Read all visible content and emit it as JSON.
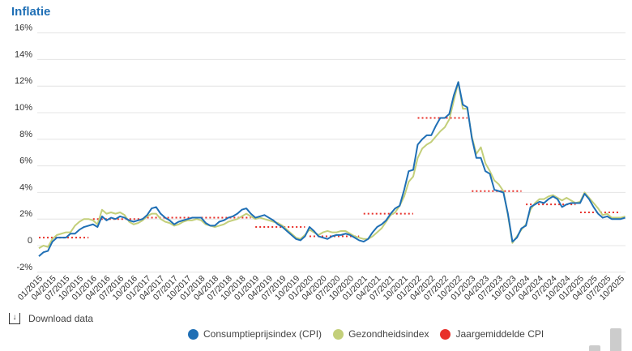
{
  "title": "Inflatie",
  "download_label": "Download data",
  "chart_data": {
    "type": "line",
    "title": "Inflatie",
    "ylim": [
      -2,
      16
    ],
    "yticks": [
      "-2%",
      "0",
      "2%",
      "4%",
      "6%",
      "8%",
      "10%",
      "12%",
      "14%",
      "16%"
    ],
    "ytick_values": [
      -2,
      0,
      2,
      4,
      6,
      8,
      10,
      12,
      14,
      16
    ],
    "start": "01/2015",
    "xtick_labels": [
      "01/2015",
      "04/2015",
      "07/2015",
      "10/2015",
      "01/2016",
      "04/2016",
      "07/2016",
      "10/2016",
      "01/2017",
      "04/2017",
      "07/2017",
      "10/2017",
      "01/2018",
      "04/2018",
      "07/2018",
      "10/2018",
      "01/2019",
      "04/2019",
      "07/2019",
      "10/2019",
      "01/2020",
      "04/2020",
      "07/2020",
      "10/2020",
      "01/2021",
      "04/2021",
      "07/2021",
      "10/2021",
      "01/2022",
      "04/2022",
      "07/2022",
      "10/2022",
      "01/2023",
      "04/2023",
      "07/2023",
      "10/2023",
      "01/2024",
      "04/2024",
      "07/2024",
      "10/2024",
      "01/2025",
      "04/2025",
      "07/2025",
      "10/2025"
    ],
    "series": [
      {
        "name": "Consumptieprijsindex (CPI)",
        "color": "#1f6fb5",
        "values": [
          -0.8,
          -0.5,
          -0.4,
          0.3,
          0.6,
          0.6,
          0.6,
          0.9,
          0.9,
          1.2,
          1.4,
          1.5,
          1.6,
          1.4,
          2.2,
          1.9,
          2.1,
          2.0,
          2.2,
          2.1,
          1.9,
          1.8,
          1.9,
          2.0,
          2.3,
          2.8,
          2.9,
          2.4,
          2.1,
          1.9,
          1.6,
          1.8,
          1.9,
          2.0,
          2.1,
          2.1,
          2.1,
          1.7,
          1.5,
          1.5,
          1.8,
          1.9,
          2.1,
          2.2,
          2.4,
          2.7,
          2.8,
          2.4,
          2.1,
          2.2,
          2.3,
          2.1,
          1.9,
          1.6,
          1.4,
          1.1,
          0.8,
          0.5,
          0.4,
          0.7,
          1.4,
          1.1,
          0.7,
          0.6,
          0.5,
          0.7,
          0.8,
          0.8,
          0.9,
          0.8,
          0.6,
          0.4,
          0.3,
          0.5,
          1.0,
          1.4,
          1.6,
          1.9,
          2.4,
          2.8,
          3.0,
          4.2,
          5.6,
          5.7,
          7.6,
          8.0,
          8.3,
          8.3,
          9.0,
          9.6,
          9.6,
          9.9,
          11.3,
          12.3,
          10.6,
          10.4,
          8.1,
          6.6,
          6.6,
          5.6,
          5.4,
          4.2,
          4.1,
          4.0,
          2.4,
          0.3,
          0.6,
          1.3,
          1.5,
          2.9,
          3.1,
          3.3,
          3.2,
          3.5,
          3.7,
          3.5,
          2.9,
          3.1,
          3.2,
          3.2,
          3.2,
          3.9,
          3.5,
          2.9,
          2.4,
          2.1,
          2.2,
          2.0,
          2.0,
          2.0,
          2.1
        ]
      },
      {
        "name": "Gezondheidsindex",
        "color": "#c3cf7a",
        "values": [
          -0.2,
          0.0,
          -0.1,
          0.5,
          0.8,
          0.9,
          1.0,
          1.0,
          1.5,
          1.8,
          2.0,
          2.0,
          1.9,
          1.6,
          2.7,
          2.4,
          2.5,
          2.4,
          2.5,
          2.3,
          1.8,
          1.6,
          1.7,
          1.9,
          2.2,
          2.4,
          2.4,
          2.0,
          1.8,
          1.7,
          1.5,
          1.6,
          1.8,
          1.9,
          1.9,
          2.0,
          1.9,
          1.6,
          1.5,
          1.4,
          1.5,
          1.6,
          1.8,
          1.9,
          2.0,
          2.2,
          2.4,
          2.2,
          2.0,
          2.1,
          2.0,
          1.9,
          1.8,
          1.7,
          1.5,
          1.2,
          0.9,
          0.6,
          0.5,
          0.8,
          1.2,
          1.0,
          0.8,
          1.0,
          1.1,
          1.0,
          1.0,
          1.1,
          1.1,
          0.9,
          0.7,
          0.6,
          0.5,
          0.5,
          0.7,
          1.0,
          1.3,
          1.8,
          2.3,
          2.5,
          3.0,
          3.7,
          4.8,
          5.2,
          6.6,
          7.3,
          7.6,
          7.8,
          8.2,
          8.6,
          8.9,
          9.5,
          10.9,
          12.3,
          10.3,
          10.3,
          8.2,
          6.9,
          7.4,
          6.2,
          5.6,
          4.9,
          4.6,
          4.1,
          2.3,
          0.2,
          0.7,
          1.2,
          1.6,
          2.7,
          3.2,
          3.5,
          3.5,
          3.7,
          3.8,
          3.6,
          3.4,
          3.6,
          3.4,
          3.2,
          3.3,
          4.0,
          3.6,
          3.2,
          2.8,
          2.3,
          2.4,
          2.1,
          2.1,
          2.1,
          2.2
        ]
      },
      {
        "name": "Jaargemiddelde CPI",
        "color": "#e8302a",
        "years": [
          "2015",
          "2016",
          "2017",
          "2018",
          "2019",
          "2020",
          "2021",
          "2022",
          "2023",
          "2024",
          "2025"
        ],
        "values": [
          0.6,
          2.0,
          2.1,
          2.1,
          1.4,
          0.7,
          2.4,
          9.6,
          4.1,
          3.1,
          2.5
        ]
      }
    ],
    "legend_position": "bottom"
  }
}
